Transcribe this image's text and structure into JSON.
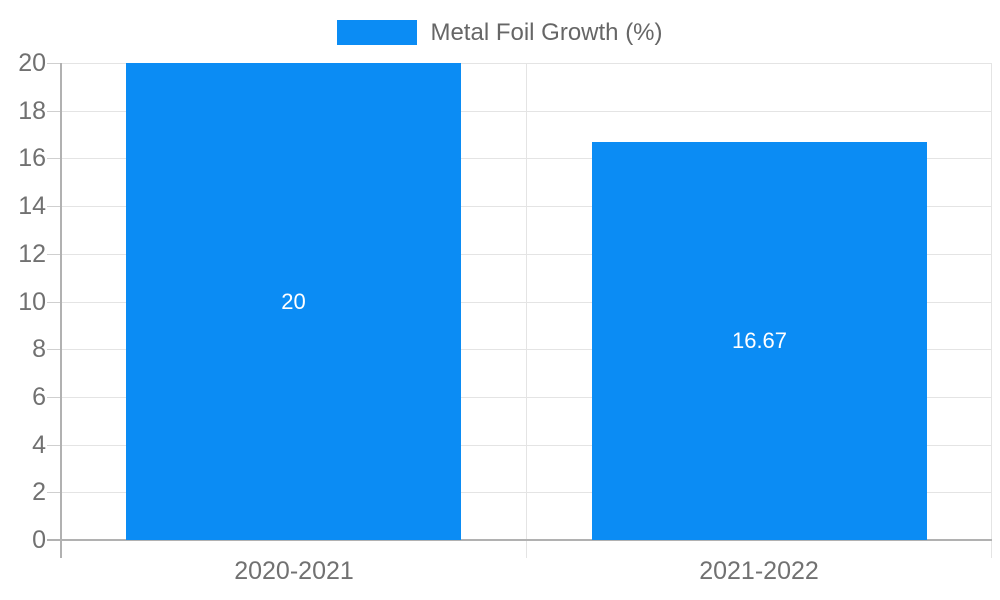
{
  "chart_data": {
    "type": "bar",
    "title": "",
    "legend": {
      "label": "Metal Foil Growth (%)",
      "position": "top-center"
    },
    "categories": [
      "2020-2021",
      "2021-2022"
    ],
    "series": [
      {
        "name": "Metal Foil Growth (%)",
        "values": [
          20,
          16.67
        ],
        "value_labels": [
          "20",
          "16.67"
        ]
      }
    ],
    "ylim": [
      0,
      20
    ],
    "yticks": [
      0,
      2,
      4,
      6,
      8,
      10,
      12,
      14,
      16,
      18,
      20
    ],
    "grid": true,
    "colors": {
      "bar": "#0b8cf4",
      "bar_label": "#ffffff",
      "axis": "#b1b1b1",
      "gridline": "#e4e4e4",
      "tick": "#cfcfcf",
      "tick_label": "#717171",
      "legend_text": "#666666",
      "background": "#ffffff"
    }
  }
}
